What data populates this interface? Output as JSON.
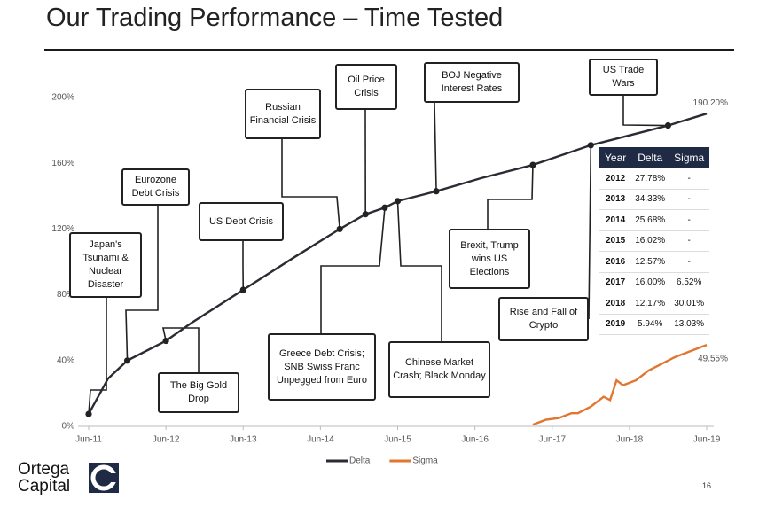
{
  "chart_data": {
    "type": "line",
    "title": "Our Trading Performance – Time Tested",
    "ylim": [
      0,
      200
    ],
    "yticks": [
      {
        "value": 0,
        "label": "0%"
      },
      {
        "value": 40,
        "label": "40%"
      },
      {
        "value": 80,
        "label": "80%"
      },
      {
        "value": 120,
        "label": "120%"
      },
      {
        "value": 160,
        "label": "160%"
      },
      {
        "value": 200,
        "label": "200%"
      }
    ],
    "xlim": [
      "2011-06",
      "2019-06"
    ],
    "xticks": [
      {
        "value": "2011-06",
        "label": "Jun-11"
      },
      {
        "value": "2012-06",
        "label": "Jun-12"
      },
      {
        "value": "2013-06",
        "label": "Jun-13"
      },
      {
        "value": "2014-06",
        "label": "Jun-14"
      },
      {
        "value": "2015-06",
        "label": "Jun-15"
      },
      {
        "value": "2016-06",
        "label": "Jun-16"
      },
      {
        "value": "2017-06",
        "label": "Jun-17"
      },
      {
        "value": "2018-06",
        "label": "Jun-18"
      },
      {
        "value": "2019-06",
        "label": "Jun-19"
      }
    ],
    "series": [
      {
        "name": "Delta",
        "color": "#2b2b33",
        "x": [
          "2011-06",
          "2011-09",
          "2011-12",
          "2012-06",
          "2012-10",
          "2013-06",
          "2014-02",
          "2014-09",
          "2015-01",
          "2015-04",
          "2015-06",
          "2015-12",
          "2016-07",
          "2017-03",
          "2017-12",
          "2018-12",
          "2019-06"
        ],
        "values": [
          7.5,
          29,
          40,
          52,
          63,
          83,
          103,
          120,
          129,
          133,
          137,
          143,
          151,
          159,
          171,
          183,
          190.2
        ],
        "value_labels": [
          null,
          null,
          null,
          null,
          null,
          null,
          null,
          null,
          null,
          null,
          null,
          null,
          null,
          null,
          null,
          null,
          "190.20%"
        ]
      },
      {
        "name": "Sigma",
        "color": "#e0762f",
        "x": [
          "2017-03",
          "2017-05",
          "2017-07",
          "2017-09",
          "2017-10",
          "2017-12",
          "2018-02",
          "2018-03",
          "2018-04",
          "2018-05",
          "2018-07",
          "2018-09",
          "2018-11",
          "2019-01",
          "2019-03",
          "2019-06"
        ],
        "values": [
          1,
          4,
          5,
          8,
          8,
          12,
          18,
          16,
          28,
          25,
          28,
          34,
          38,
          42,
          45,
          49.55
        ],
        "value_labels": [
          null,
          null,
          null,
          null,
          null,
          null,
          null,
          null,
          null,
          null,
          null,
          null,
          null,
          null,
          null,
          "49.55%"
        ]
      }
    ],
    "annotations": [
      "Japan's Tsunami & Nuclear Disaster",
      "Eurozone Debt Crisis",
      "US Debt Crisis",
      "The Big Gold Drop",
      "Russian Financial Crisis",
      "Oil Price Crisis",
      "Greece Debt Crisis; SNB Swiss Franc Unpegged from Euro",
      "BOJ Negative Interest Rates",
      "Chinese Market Crash; Black Monday",
      "Brexit, Trump wins US Elections",
      "Rise and Fall of Crypto",
      "US Trade Wars"
    ],
    "legend": "bottom"
  },
  "table": {
    "header": [
      "Year",
      "Delta",
      "Sigma"
    ],
    "rows": [
      [
        "2012",
        "27.78%",
        "-"
      ],
      [
        "2013",
        "34.33%",
        "-"
      ],
      [
        "2014",
        "25.68%",
        "-"
      ],
      [
        "2015",
        "16.02%",
        "-"
      ],
      [
        "2016",
        "12.57%",
        "-"
      ],
      [
        "2017",
        "16.00%",
        "6.52%"
      ],
      [
        "2018",
        "12.17%",
        "30.01%"
      ],
      [
        "2019",
        "5.94%",
        "13.03%"
      ]
    ]
  },
  "logo": {
    "line1": "Ortega",
    "line2": "Capital"
  },
  "page_number": "16"
}
